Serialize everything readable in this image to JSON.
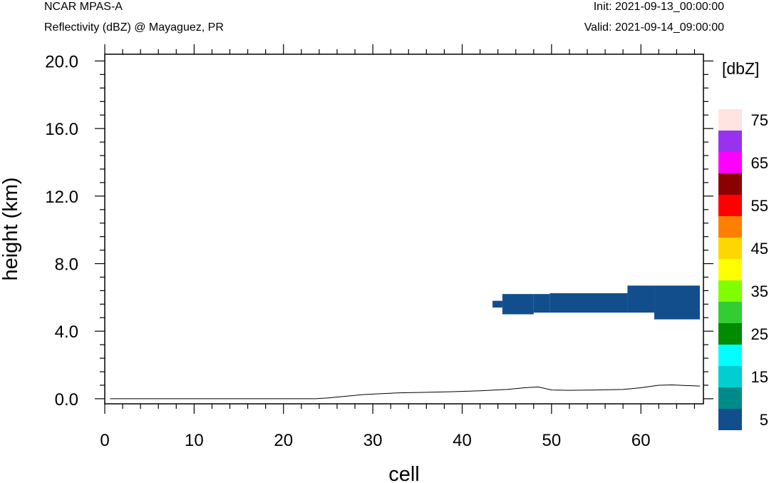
{
  "header": {
    "model": "NCAR MPAS-A",
    "field": "Reflectivity (dBZ) @ Mayaguez, PR",
    "init": "Init: 2021-09-13_00:00:00",
    "valid": "Valid: 2021-09-14_09:00:00"
  },
  "chart_data": {
    "type": "heatmap",
    "xlabel": "cell",
    "ylabel": "height (km)",
    "xlim": [
      0,
      67
    ],
    "ylim": [
      -0.3,
      20.4
    ],
    "x_ticks": [
      0,
      10,
      20,
      30,
      40,
      50,
      60
    ],
    "x_tick_labels": [
      "0",
      "10",
      "20",
      "30",
      "40",
      "50",
      "60"
    ],
    "y_ticks": [
      0,
      4,
      8,
      12,
      16,
      20
    ],
    "y_tick_labels": [
      "0.0",
      "4.0",
      "8.0",
      "12.0",
      "16.0",
      "20.0"
    ],
    "grid": false,
    "colorbar": {
      "label": "[dbZ]",
      "position": "right",
      "levels": [
        5,
        10,
        15,
        20,
        25,
        30,
        35,
        40,
        45,
        50,
        55,
        60,
        65,
        70,
        75
      ],
      "tick_labels": [
        "5",
        "15",
        "25",
        "35",
        "45",
        "55",
        "65",
        "75"
      ],
      "colors": [
        "#134e8c",
        "#008b8b",
        "#00ced1",
        "#00ffff",
        "#008b00",
        "#32cd32",
        "#7fff00",
        "#ffff00",
        "#ffd700",
        "#ff7f00",
        "#ff0000",
        "#8b0000",
        "#ff00ff",
        "#9932ec",
        "#ffe4e1"
      ]
    },
    "reflectivity_regions": [
      {
        "x": [
          43.4,
          44.5
        ],
        "y": [
          5.4,
          5.8
        ],
        "dbz_bin": 5
      },
      {
        "x": [
          44.5,
          48.0
        ],
        "y": [
          5.0,
          6.2
        ],
        "dbz_bin": 5
      },
      {
        "x": [
          48.0,
          49.8
        ],
        "y": [
          5.1,
          6.2
        ],
        "dbz_bin": 5
      },
      {
        "x": [
          49.8,
          58.5
        ],
        "y": [
          5.1,
          6.25
        ],
        "dbz_bin": 5
      },
      {
        "x": [
          58.5,
          61.5
        ],
        "y": [
          5.1,
          6.7
        ],
        "dbz_bin": 5
      },
      {
        "x": [
          61.5,
          66.6
        ],
        "y": [
          4.7,
          6.7
        ],
        "dbz_bin": 5
      }
    ],
    "terrain": {
      "x": [
        0.6,
        23.6,
        25,
        27,
        29,
        31,
        33,
        36,
        39,
        42,
        45,
        47,
        48.5,
        50,
        52,
        55,
        58,
        60,
        62,
        63.5,
        65,
        66.6
      ],
      "y": [
        0.0,
        0.0,
        0.05,
        0.15,
        0.25,
        0.3,
        0.35,
        0.38,
        0.42,
        0.47,
        0.55,
        0.65,
        0.7,
        0.52,
        0.5,
        0.52,
        0.55,
        0.65,
        0.8,
        0.82,
        0.78,
        0.75
      ]
    }
  }
}
